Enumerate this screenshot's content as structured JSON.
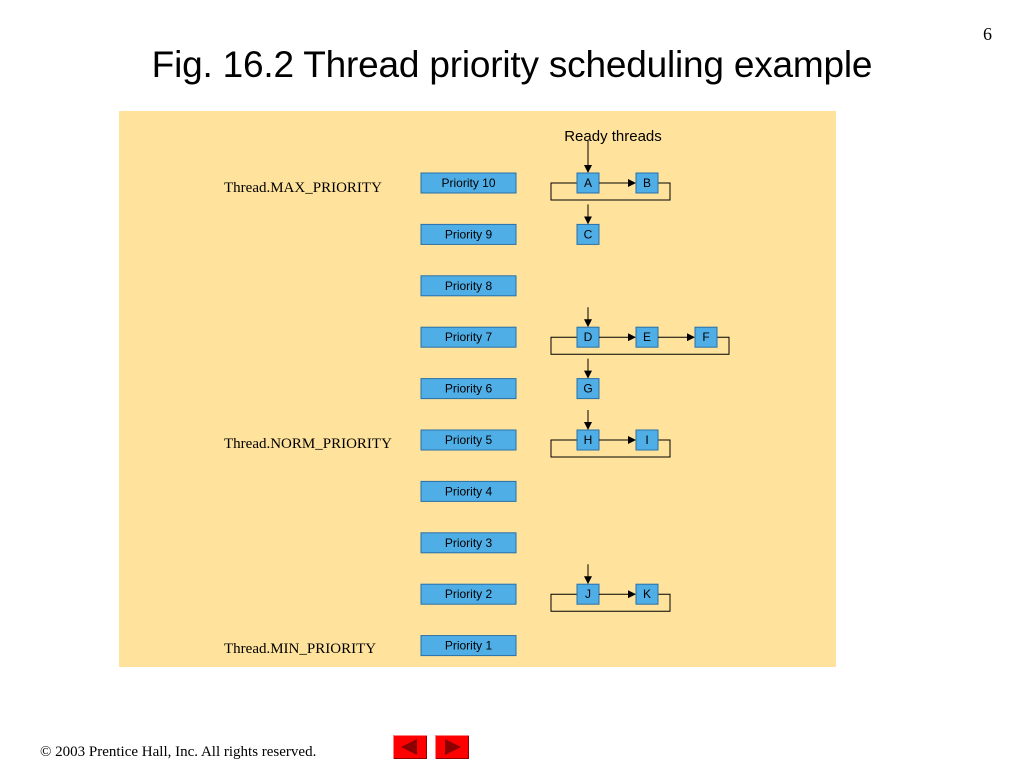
{
  "page_number": "6",
  "title": "Fig. 16.2  Thread priority scheduling example",
  "diagram": {
    "ready_label": "Ready threads",
    "constants": {
      "max": "Thread.MAX_PRIORITY",
      "norm": "Thread.NORM_PRIORITY",
      "min": "Thread.MIN_PRIORITY"
    },
    "priorities": [
      "Priority 10",
      "Priority 9",
      "Priority 8",
      "Priority 7",
      "Priority 6",
      "Priority 5",
      "Priority 4",
      "Priority 3",
      "Priority 2",
      "Priority 1"
    ],
    "queues": [
      {
        "priority": "Priority 10",
        "threads": [
          "A",
          "B"
        ]
      },
      {
        "priority": "Priority 9",
        "threads": [
          "C"
        ]
      },
      {
        "priority": "Priority 7",
        "threads": [
          "D",
          "E",
          "F"
        ]
      },
      {
        "priority": "Priority 6",
        "threads": [
          "G"
        ]
      },
      {
        "priority": "Priority 5",
        "threads": [
          "H",
          "I"
        ]
      },
      {
        "priority": "Priority 2",
        "threads": [
          "J",
          "K"
        ]
      }
    ],
    "colors": {
      "panel": "#ffe39c",
      "box_fill": "#4faee6",
      "box_stroke": "#2a6fa6"
    }
  },
  "footer": {
    "copyright": "© 2003 Prentice Hall, Inc.  All rights reserved."
  },
  "nav": {
    "prev_icon": "left-triangle-icon",
    "next_icon": "right-triangle-icon"
  }
}
